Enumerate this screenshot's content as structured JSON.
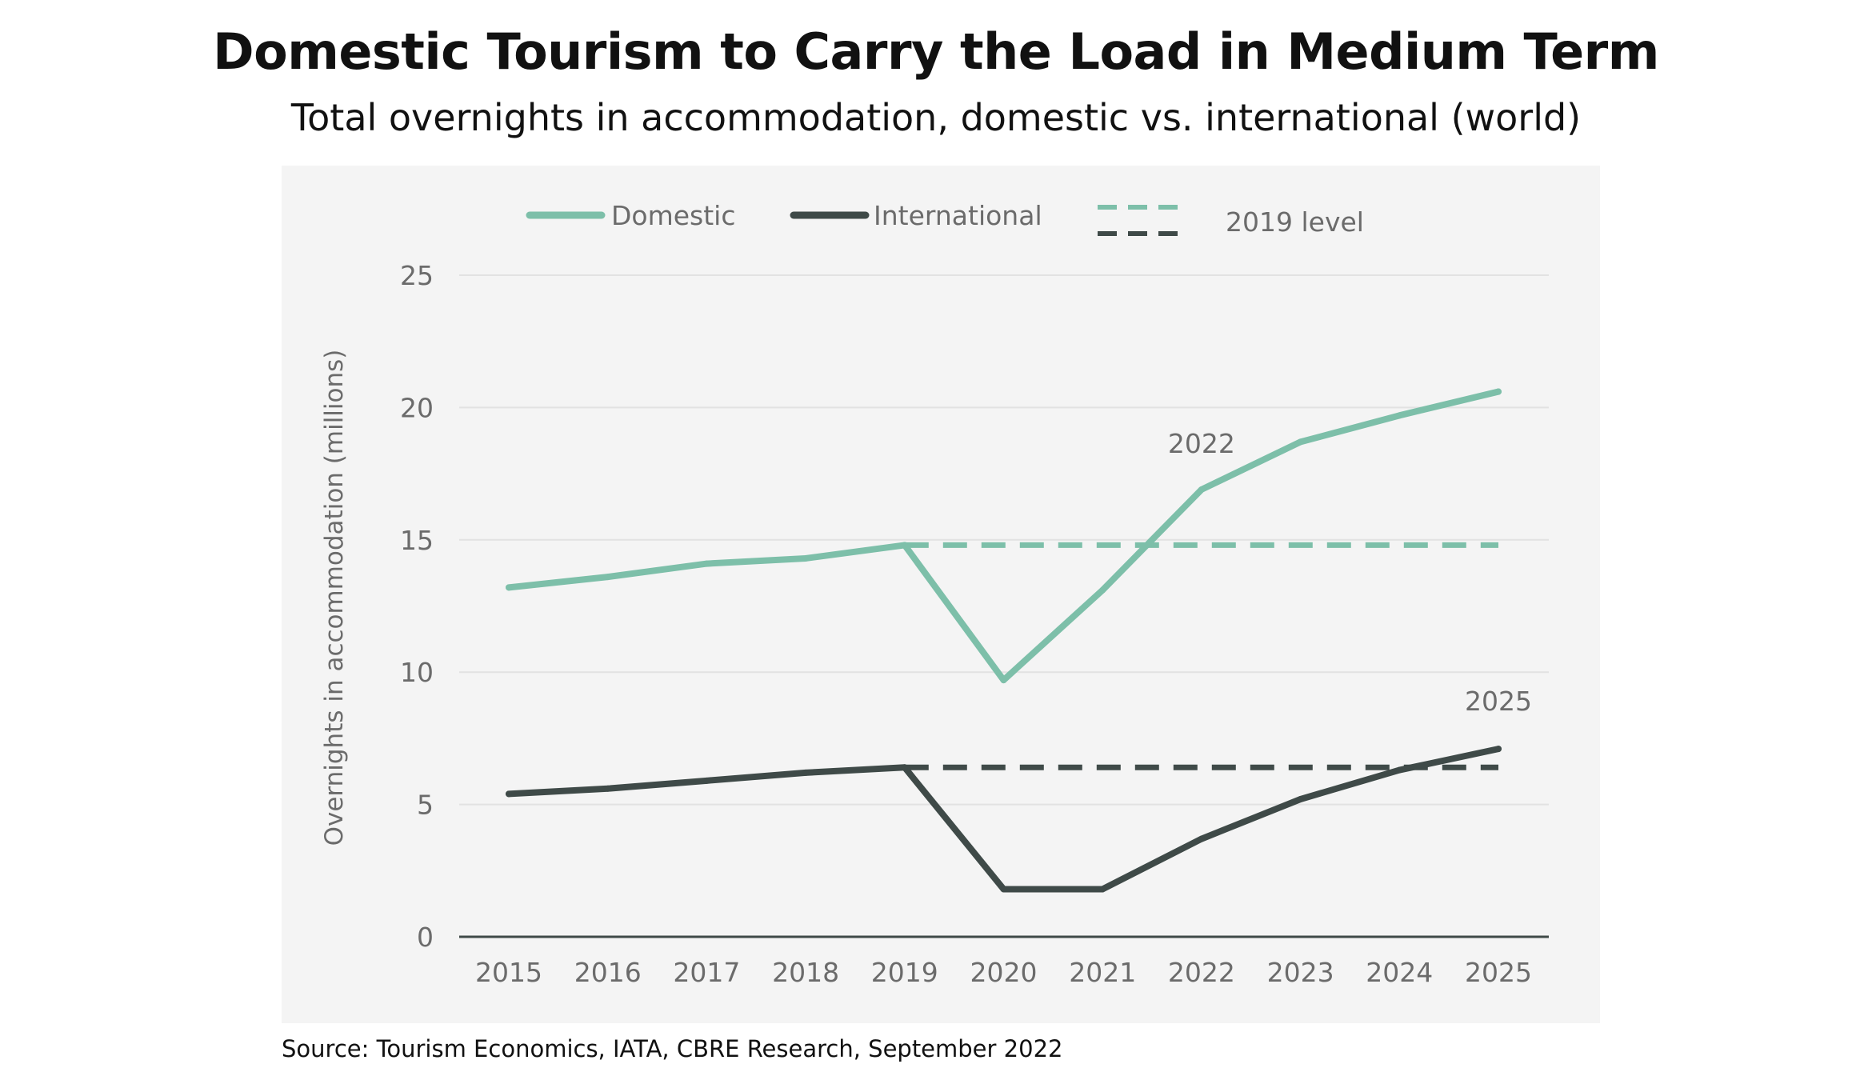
{
  "title": "Domestic Tourism to Carry the Load in Medium Term",
  "subtitle": "Total overnights in accommodation, domestic vs. international (world)",
  "source": "Source: Tourism Economics, IATA, CBRE Research, September 2022",
  "chart_data": {
    "type": "line",
    "title": "Domestic Tourism to Carry the Load in Medium Term",
    "subtitle": "Total overnights in accommodation, domestic vs. international (world)",
    "xlabel": "",
    "ylabel": "Overnights in accommodation (millions)",
    "x": [
      "2015",
      "2016",
      "2017",
      "2018",
      "2019",
      "2020",
      "2021",
      "2022",
      "2023",
      "2024",
      "2025"
    ],
    "ylim": [
      0,
      25
    ],
    "yticks": [
      "0",
      "5",
      "10",
      "15",
      "20",
      "25"
    ],
    "grid": true,
    "legend": "top",
    "series": [
      {
        "name": "Domestic",
        "color": "#7dbfa9",
        "values": [
          13.2,
          13.6,
          14.1,
          14.3,
          14.8,
          9.7,
          13.1,
          16.9,
          18.7,
          19.7,
          20.6
        ]
      },
      {
        "name": "International",
        "color": "#3f4a48",
        "values": [
          5.4,
          5.6,
          5.9,
          6.2,
          6.4,
          1.8,
          1.8,
          3.7,
          5.2,
          6.3,
          7.1
        ]
      }
    ],
    "reference_lines": {
      "name": "2019 level",
      "from": "2019",
      "to": "2025",
      "domestic_value": 14.8,
      "international_value": 6.4
    },
    "annotations": [
      {
        "text": "2022",
        "series": "Domestic",
        "x": "2022"
      },
      {
        "text": "2025",
        "series": "International",
        "x": "2025"
      }
    ]
  }
}
